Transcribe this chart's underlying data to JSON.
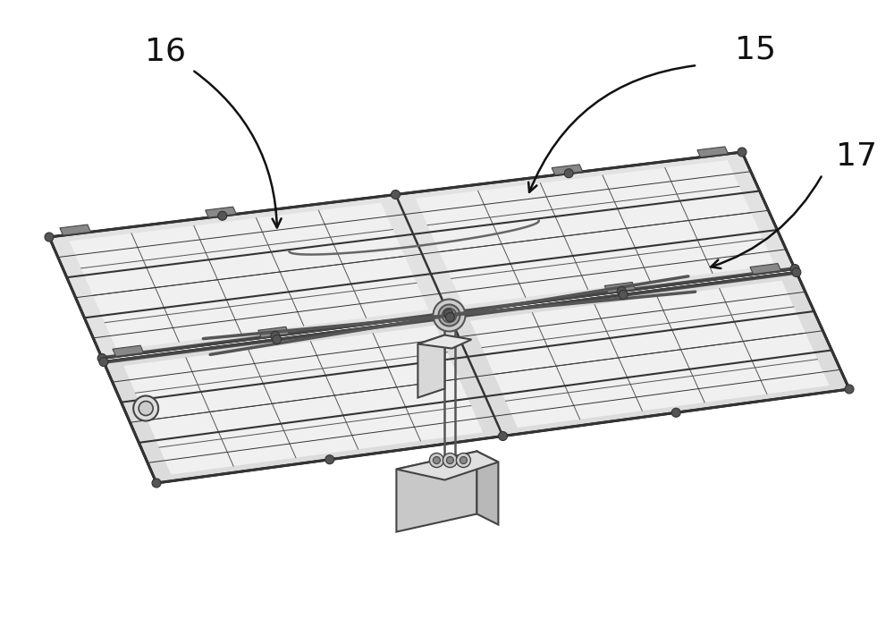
{
  "background_color": "#f5f5f5",
  "label_15": "15",
  "label_16": "16",
  "label_17": "17",
  "label_fontsize": 26,
  "panel_fill": "#f0f0f0",
  "panel_fill_inner": "#ebebeb",
  "frame_fill": "#e0e0e0",
  "edge_color": "#333333",
  "grid_color": "#555555",
  "grid_lw": 0.7,
  "frame_lw": 1.5,
  "outer_frame_lw": 2.2,
  "support_color": "#444444",
  "arrow_color": "#111111",
  "arrow_lw": 1.8,
  "label_color": "#111111"
}
